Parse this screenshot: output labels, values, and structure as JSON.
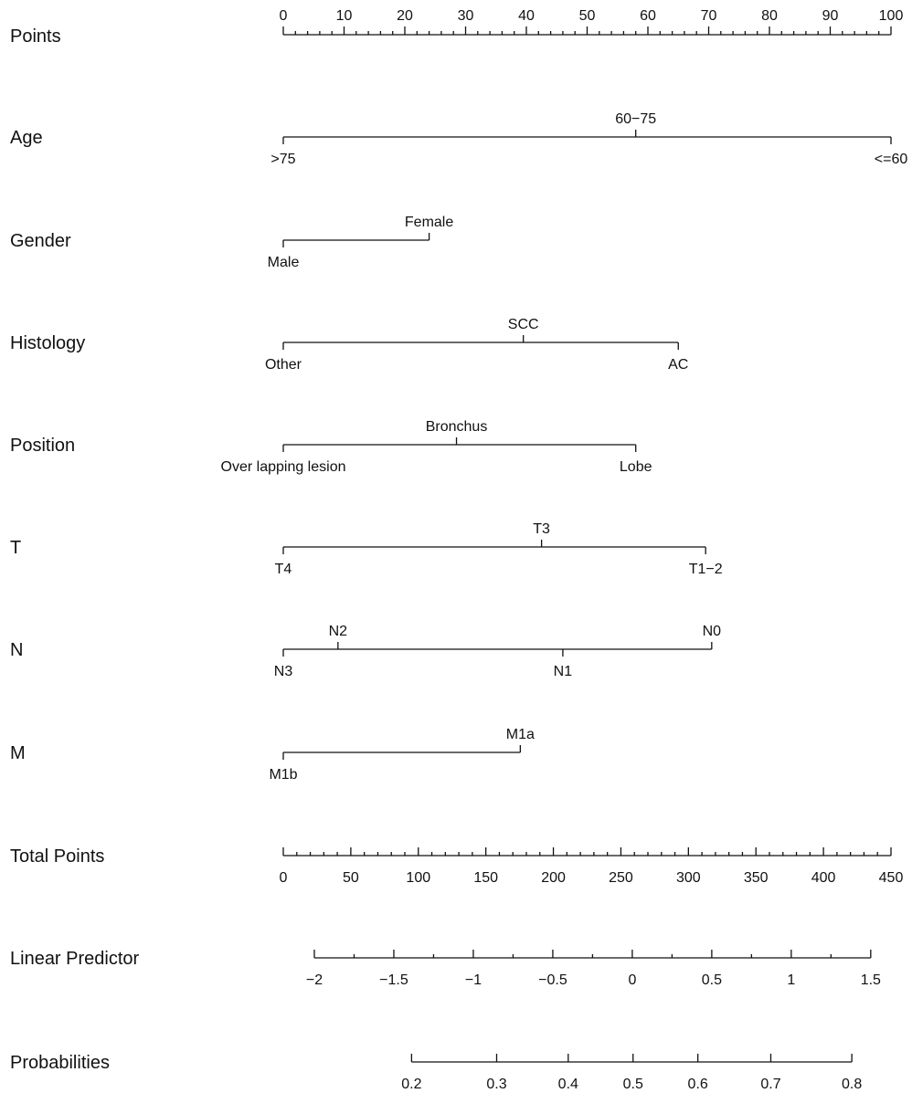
{
  "chart_data": {
    "type": "nomogram",
    "points_scale": {
      "label": "Points",
      "range": [
        0,
        100
      ],
      "major_ticks": [
        0,
        10,
        20,
        30,
        40,
        50,
        60,
        70,
        80,
        90,
        100
      ],
      "minor_step": 2
    },
    "variables": [
      {
        "name": "Age",
        "levels": [
          {
            "label": ">75",
            "points": 0,
            "side": "below"
          },
          {
            "label": "60−75",
            "points": 58,
            "side": "above"
          },
          {
            "label": "<=60",
            "points": 100,
            "side": "below"
          }
        ]
      },
      {
        "name": "Gender",
        "levels": [
          {
            "label": "Male",
            "points": 0,
            "side": "below"
          },
          {
            "label": "Female",
            "points": 24,
            "side": "above"
          }
        ]
      },
      {
        "name": "Histology",
        "levels": [
          {
            "label": "Other",
            "points": 0,
            "side": "below"
          },
          {
            "label": "SCC",
            "points": 39.5,
            "side": "above"
          },
          {
            "label": "AC",
            "points": 65,
            "side": "below"
          }
        ]
      },
      {
        "name": "Position",
        "levels": [
          {
            "label": "Over lapping lesion",
            "points": 0,
            "side": "below"
          },
          {
            "label": "Bronchus",
            "points": 28.5,
            "side": "above"
          },
          {
            "label": "Lobe",
            "points": 58,
            "side": "below"
          }
        ]
      },
      {
        "name": "T",
        "levels": [
          {
            "label": "T4",
            "points": 0,
            "side": "below"
          },
          {
            "label": "T3",
            "points": 42.5,
            "side": "above"
          },
          {
            "label": "T1−2",
            "points": 69.5,
            "side": "below"
          }
        ]
      },
      {
        "name": "N",
        "levels": [
          {
            "label": "N3",
            "points": 0,
            "side": "below"
          },
          {
            "label": "N2",
            "points": 9,
            "side": "above"
          },
          {
            "label": "N1",
            "points": 46,
            "side": "below"
          },
          {
            "label": "N0",
            "points": 70.5,
            "side": "above"
          }
        ]
      },
      {
        "name": "M",
        "levels": [
          {
            "label": "M1b",
            "points": 0,
            "side": "below"
          },
          {
            "label": "M1a",
            "points": 39,
            "side": "above"
          }
        ]
      }
    ],
    "total_points": {
      "label": "Total Points",
      "range": [
        0,
        450
      ],
      "major_ticks": [
        0,
        50,
        100,
        150,
        200,
        250,
        300,
        350,
        400,
        450
      ],
      "minor_step": 10
    },
    "linear_predictor": {
      "label": "Linear Predictor",
      "ticks": [
        -2,
        -1.5,
        -1,
        -0.5,
        0,
        0.5,
        1,
        1.5
      ],
      "tick_labels": [
        "−2",
        "−1.5",
        "−1",
        "−0.5",
        "0",
        "0.5",
        "1",
        "1.5"
      ],
      "minor_step": 0.25,
      "total_points_at_ticks": [
        [
          -2,
          23
        ],
        [
          1.5,
          435
        ]
      ]
    },
    "probabilities": {
      "label": "Probabilities",
      "ticks": [
        0.2,
        0.3,
        0.4,
        0.5,
        0.6,
        0.7,
        0.8
      ],
      "tick_labels": [
        "0.2",
        "0.3",
        "0.4",
        "0.5",
        "0.6",
        "0.7",
        "0.8"
      ],
      "total_points_at_ticks": [
        95,
        158,
        211,
        259,
        307,
        361,
        421
      ]
    },
    "grid": false
  }
}
